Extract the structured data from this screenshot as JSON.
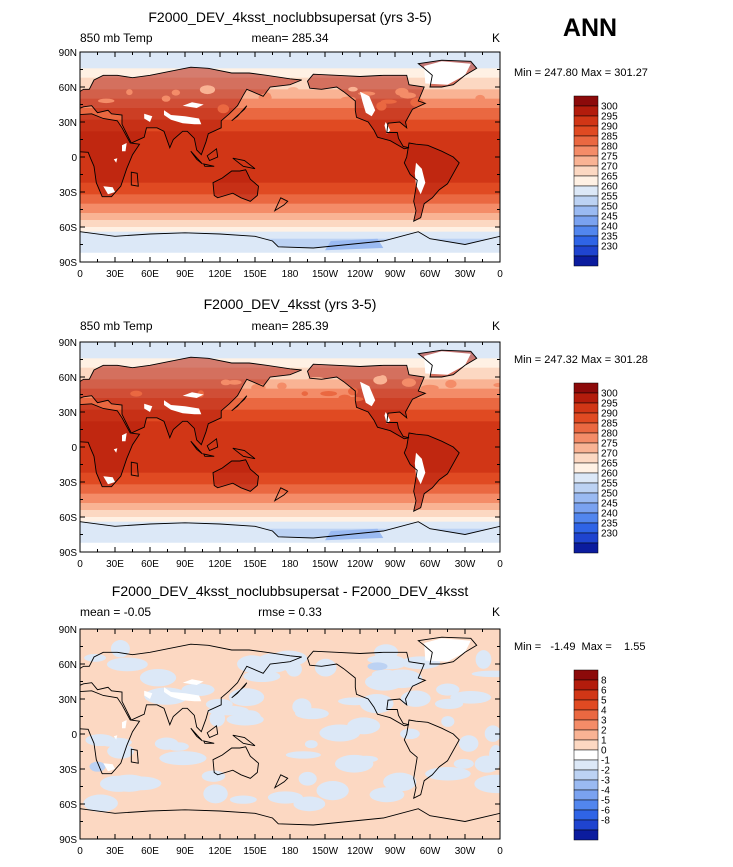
{
  "page_title": "ANN",
  "chart_data": [
    {
      "type": "heatmap",
      "title": "F2000_DEV_4ksst_noclubbsupersat (yrs 3-5)",
      "left_text": "850 mb Temp",
      "center_text": "mean= 285.34",
      "right_text": "K",
      "minmax": "Min = 247.80 Max = 301.27",
      "x_tick_labels": [
        "0",
        "30E",
        "60E",
        "90E",
        "120E",
        "150E",
        "180",
        "150W",
        "120W",
        "90W",
        "60W",
        "30W",
        "0"
      ],
      "y_tick_labels": [
        "90N",
        "60N",
        "30N",
        "0",
        "30S",
        "60S",
        "90S"
      ],
      "xlim": [
        0,
        360
      ],
      "ylim": [
        -90,
        90
      ],
      "colorbar_labels": [
        "300",
        "295",
        "290",
        "285",
        "280",
        "275",
        "270",
        "265",
        "260",
        "255",
        "250",
        "245",
        "240",
        "235",
        "230"
      ],
      "colorbar_colors": [
        "#8c0a0a",
        "#b31c0c",
        "#d13616",
        "#e04a22",
        "#ea6841",
        "#f48c68",
        "#f9b394",
        "#fcd8c2",
        "#fff1e4",
        "#dce8f7",
        "#bcd2f3",
        "#9abaf2",
        "#7aa2f0",
        "#5286ee",
        "#2f64e6",
        "#1f44cf",
        "#0b1c9e"
      ],
      "field": "temp"
    },
    {
      "type": "heatmap",
      "title": "F2000_DEV_4ksst (yrs 3-5)",
      "left_text": "850 mb Temp",
      "center_text": "mean= 285.39",
      "right_text": "K",
      "minmax": "Min = 247.32 Max = 301.28",
      "x_tick_labels": [
        "0",
        "30E",
        "60E",
        "90E",
        "120E",
        "150E",
        "180",
        "150W",
        "120W",
        "90W",
        "60W",
        "30W",
        "0"
      ],
      "y_tick_labels": [
        "90N",
        "60N",
        "30N",
        "0",
        "30S",
        "60S",
        "90S"
      ],
      "xlim": [
        0,
        360
      ],
      "ylim": [
        -90,
        90
      ],
      "colorbar_labels": [
        "300",
        "295",
        "290",
        "285",
        "280",
        "275",
        "270",
        "265",
        "260",
        "255",
        "250",
        "245",
        "240",
        "235",
        "230"
      ],
      "colorbar_colors": [
        "#8c0a0a",
        "#b31c0c",
        "#d13616",
        "#e04a22",
        "#ea6841",
        "#f48c68",
        "#f9b394",
        "#fcd8c2",
        "#fff1e4",
        "#dce8f7",
        "#bcd2f3",
        "#9abaf2",
        "#7aa2f0",
        "#5286ee",
        "#2f64e6",
        "#1f44cf",
        "#0b1c9e"
      ],
      "field": "temp"
    },
    {
      "type": "heatmap",
      "title": "F2000_DEV_4ksst_noclubbsupersat - F2000_DEV_4ksst",
      "left_text": "mean =   -0.05",
      "center_text": "rmse =     0.33",
      "right_text": "K",
      "minmax": "Min =   -1.49  Max =    1.55",
      "x_tick_labels": [
        "0",
        "30E",
        "60E",
        "90E",
        "120E",
        "150E",
        "180",
        "150W",
        "120W",
        "90W",
        "60W",
        "30W",
        "0"
      ],
      "y_tick_labels": [
        "90N",
        "60N",
        "30N",
        "0",
        "30S",
        "60S",
        "90S"
      ],
      "xlim": [
        0,
        360
      ],
      "ylim": [
        -90,
        90
      ],
      "colorbar_labels": [
        "8",
        "6",
        "5",
        "4",
        "3",
        "2",
        "1",
        "0",
        "-1",
        "-2",
        "-3",
        "-4",
        "-5",
        "-6",
        "-8"
      ],
      "colorbar_colors": [
        "#8c0a0a",
        "#b31c0c",
        "#d13616",
        "#e04a22",
        "#ea6841",
        "#f48c68",
        "#f9b394",
        "#fcd8c2",
        "#ffffff",
        "#dce8f7",
        "#bcd2f3",
        "#9abaf2",
        "#7aa2f0",
        "#5286ee",
        "#2f64e6",
        "#1f44cf",
        "#0b1c9e"
      ],
      "field": "diff"
    }
  ]
}
